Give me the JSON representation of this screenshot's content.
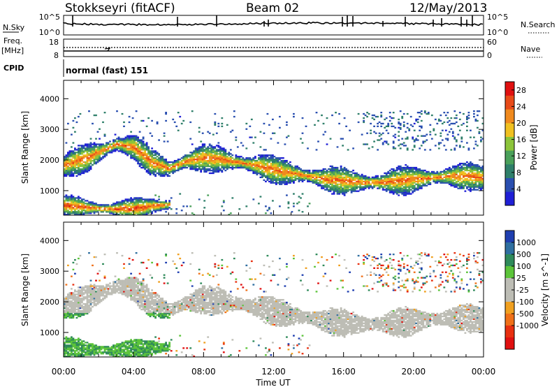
{
  "header": {
    "station": "Stokkseyri (fitACF)",
    "beam": "Beam 02",
    "date": "12/May/2013"
  },
  "strip_panels": {
    "nsky_label": "N.Sky",
    "nsky_ticks": [
      "10^5",
      "10^0"
    ],
    "nsearch_label": "N.Search",
    "nsearch_ticks": [
      "10^5",
      "10^0"
    ],
    "freq_label_1": "Freq.",
    "freq_label_2": "[MHz]",
    "freq_ticks": [
      "18",
      "8"
    ],
    "nave_label": "Nave",
    "nave_ticks": [
      "60",
      "0"
    ],
    "cpid_label": "CPID",
    "cpid_value": "normal (fast) 151"
  },
  "colors": {
    "power_scale": [
      "#1f1fd6",
      "#2a4fb0",
      "#2f7f6a",
      "#4aa05a",
      "#8cc43a",
      "#f0c020",
      "#f08a1e",
      "#e84a18",
      "#e01010"
    ],
    "velocity_scale": [
      "#1f3fb0",
      "#2f6fa0",
      "#2f8a5a",
      "#5cc43a",
      "#bdbdb5",
      "#bdbdb5",
      "#f0a020",
      "#f07018",
      "#e83010",
      "#e01010"
    ]
  },
  "chart_data": [
    {
      "type": "heatmap",
      "name": "power",
      "ylabel": "Slant Range [km]",
      "xlabel": "Time UT",
      "x_ticks": [
        "00:00",
        "04:00",
        "08:00",
        "12:00",
        "16:00",
        "20:00",
        "00:00"
      ],
      "y_ticks": [
        "1000",
        "2000",
        "3000",
        "4000"
      ],
      "xlim_hours": [
        0,
        24
      ],
      "ylim_km": [
        200,
        4600
      ],
      "colorbar_label": "Power [dB]",
      "colorbar_ticks": [
        "28",
        "24",
        "20",
        "16",
        "12",
        "8",
        "4"
      ],
      "colorbar_range": [
        0,
        30
      ],
      "bands": [
        {
          "t": [
            0.0,
            1.5,
            3.0,
            4.0,
            5.0,
            6.0,
            7.0,
            8.0,
            9.0,
            10.0,
            11.0,
            12.0,
            13.0,
            14.0,
            15.0,
            16.0,
            17.0,
            18.0,
            19.0,
            20.0,
            21.0,
            22.0,
            23.0,
            24.0
          ],
          "r": [
            1800,
            2100,
            2500,
            2400,
            1900,
            1700,
            1950,
            2050,
            2000,
            1900,
            1800,
            1650,
            1550,
            1450,
            1350,
            1300,
            1250,
            1250,
            1300,
            1350,
            1400,
            1450,
            1450,
            1400
          ],
          "width_km": 250,
          "power_db": 24
        },
        {
          "t": [
            0.0,
            1.0,
            2.0,
            3.0,
            4.0,
            5.0,
            6.0
          ],
          "r": [
            500,
            450,
            400,
            380,
            400,
            480,
            520
          ],
          "width_km": 180,
          "power_db": 26
        }
      ]
    },
    {
      "type": "heatmap",
      "name": "velocity",
      "ylabel": "Slant Range [km]",
      "xlabel": "Time UT",
      "x_ticks": [
        "00:00",
        "04:00",
        "08:00",
        "12:00",
        "16:00",
        "20:00",
        "00:00"
      ],
      "y_ticks": [
        "1000",
        "2000",
        "3000",
        "4000"
      ],
      "xlim_hours": [
        0,
        24
      ],
      "ylim_km": [
        200,
        4600
      ],
      "colorbar_label": "Velocity [m s^-1]",
      "colorbar_ticks": [
        "1000",
        "500",
        "100",
        "25",
        "-25",
        "-100",
        "-500",
        "-1000"
      ],
      "colorbar_range": [
        -1000,
        1000
      ]
    }
  ]
}
